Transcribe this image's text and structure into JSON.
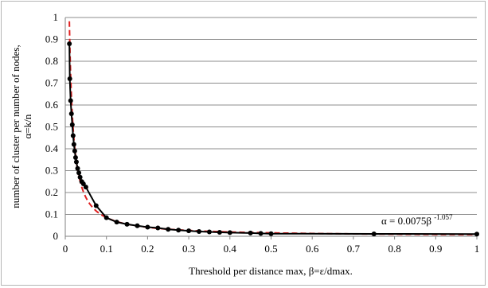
{
  "chart_data": {
    "type": "line",
    "title": "",
    "xlabel": "Threshold per distance max, β=ε/dmax.",
    "ylabel_line1": "number of cluster per number of nodes,",
    "ylabel_line2": "α=k/n",
    "xlim": [
      0,
      1
    ],
    "ylim": [
      0,
      1
    ],
    "x_ticks": [
      "0",
      "0.1",
      "0.2",
      "0.3",
      "0.4",
      "0.5",
      "0.6",
      "0.7",
      "0.8",
      "0.9",
      "1"
    ],
    "y_ticks": [
      "0",
      "0.1",
      "0.2",
      "0.3",
      "0.4",
      "0.5",
      "0.6",
      "0.7",
      "0.8",
      "0.9",
      "1"
    ],
    "grid": "horizontal",
    "legend": "none",
    "annotation": {
      "prefix": "α  = 0.0075β",
      "exponent": "-1.057"
    },
    "series": [
      {
        "kind": "measured",
        "color": "#000000",
        "x": [
          0.01,
          0.011,
          0.013,
          0.015,
          0.017,
          0.019,
          0.021,
          0.023,
          0.025,
          0.027,
          0.03,
          0.033,
          0.036,
          0.04,
          0.044,
          0.05,
          0.075,
          0.1,
          0.125,
          0.15,
          0.175,
          0.2,
          0.225,
          0.25,
          0.275,
          0.3,
          0.325,
          0.35,
          0.375,
          0.4,
          0.45,
          0.475,
          0.5,
          0.75,
          1.0
        ],
        "y": [
          0.88,
          0.72,
          0.62,
          0.56,
          0.51,
          0.46,
          0.42,
          0.39,
          0.36,
          0.34,
          0.31,
          0.29,
          0.27,
          0.25,
          0.24,
          0.225,
          0.14,
          0.085,
          0.065,
          0.055,
          0.048,
          0.042,
          0.038,
          0.032,
          0.028,
          0.025,
          0.022,
          0.02,
          0.018,
          0.017,
          0.015,
          0.013,
          0.012,
          0.011,
          0.01
        ]
      },
      {
        "kind": "fit",
        "color": "#e02020",
        "coefficient": 0.0075,
        "exponent": -1.057
      }
    ]
  }
}
